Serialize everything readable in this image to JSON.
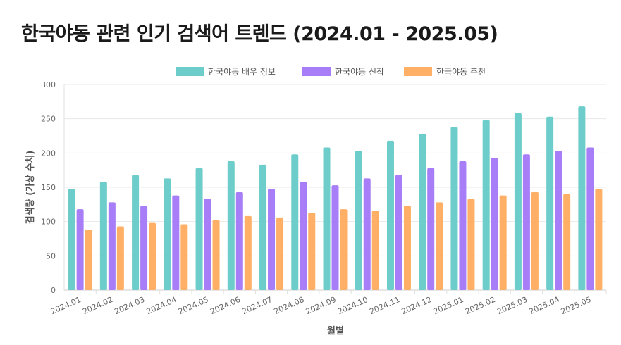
{
  "chart_data": {
    "type": "bar",
    "title": "한국야동 관련 인기 검색어 트렌드 (2024.01 - 2025.05)",
    "xlabel": "월별",
    "ylabel": "검색량 (가상 수치)",
    "ylim": [
      0,
      300
    ],
    "yticks": [
      0,
      50,
      100,
      150,
      200,
      250,
      300
    ],
    "legend_position": "top-center",
    "categories": [
      "2024.01",
      "2024.02",
      "2024.03",
      "2024.04",
      "2024.05",
      "2024.06",
      "2024.07",
      "2024.08",
      "2024.09",
      "2024.10",
      "2024.11",
      "2024.12",
      "2025.01",
      "2025.02",
      "2025.03",
      "2025.04",
      "2025.05"
    ],
    "series": [
      {
        "name": "한국야동 배우 정보",
        "color": "#6dcdca",
        "values": [
          148,
          158,
          168,
          163,
          178,
          188,
          183,
          198,
          208,
          203,
          218,
          228,
          238,
          248,
          258,
          253,
          268
        ]
      },
      {
        "name": "한국야동 신작",
        "color": "#a77ef7",
        "values": [
          118,
          128,
          123,
          138,
          133,
          143,
          148,
          158,
          153,
          163,
          168,
          178,
          188,
          193,
          198,
          203,
          208
        ]
      },
      {
        "name": "한국야동 추천",
        "color": "#ffb066",
        "values": [
          88,
          93,
          98,
          96,
          102,
          108,
          106,
          113,
          118,
          116,
          123,
          128,
          133,
          138,
          143,
          140,
          148
        ]
      }
    ]
  }
}
